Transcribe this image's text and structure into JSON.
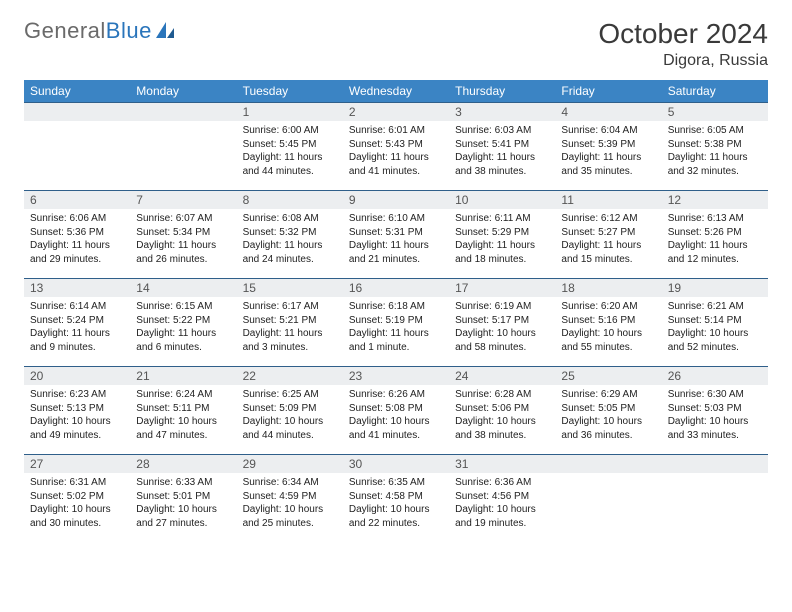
{
  "brand": {
    "part1": "General",
    "part2": "Blue"
  },
  "title": "October 2024",
  "location": "Digora, Russia",
  "colors": {
    "header_bg": "#3b84c4",
    "header_text": "#ffffff",
    "daynum_bg": "#eceef0",
    "border": "#2f5f8a",
    "body_text": "#222222",
    "title_text": "#3a3a3a",
    "logo_gray": "#6a6a6a",
    "logo_blue": "#2a75bb"
  },
  "weekdays": [
    "Sunday",
    "Monday",
    "Tuesday",
    "Wednesday",
    "Thursday",
    "Friday",
    "Saturday"
  ],
  "weeks": [
    [
      {
        "n": "",
        "sr": "",
        "ss": "",
        "dl": ""
      },
      {
        "n": "",
        "sr": "",
        "ss": "",
        "dl": ""
      },
      {
        "n": "1",
        "sr": "Sunrise: 6:00 AM",
        "ss": "Sunset: 5:45 PM",
        "dl": "Daylight: 11 hours and 44 minutes."
      },
      {
        "n": "2",
        "sr": "Sunrise: 6:01 AM",
        "ss": "Sunset: 5:43 PM",
        "dl": "Daylight: 11 hours and 41 minutes."
      },
      {
        "n": "3",
        "sr": "Sunrise: 6:03 AM",
        "ss": "Sunset: 5:41 PM",
        "dl": "Daylight: 11 hours and 38 minutes."
      },
      {
        "n": "4",
        "sr": "Sunrise: 6:04 AM",
        "ss": "Sunset: 5:39 PM",
        "dl": "Daylight: 11 hours and 35 minutes."
      },
      {
        "n": "5",
        "sr": "Sunrise: 6:05 AM",
        "ss": "Sunset: 5:38 PM",
        "dl": "Daylight: 11 hours and 32 minutes."
      }
    ],
    [
      {
        "n": "6",
        "sr": "Sunrise: 6:06 AM",
        "ss": "Sunset: 5:36 PM",
        "dl": "Daylight: 11 hours and 29 minutes."
      },
      {
        "n": "7",
        "sr": "Sunrise: 6:07 AM",
        "ss": "Sunset: 5:34 PM",
        "dl": "Daylight: 11 hours and 26 minutes."
      },
      {
        "n": "8",
        "sr": "Sunrise: 6:08 AM",
        "ss": "Sunset: 5:32 PM",
        "dl": "Daylight: 11 hours and 24 minutes."
      },
      {
        "n": "9",
        "sr": "Sunrise: 6:10 AM",
        "ss": "Sunset: 5:31 PM",
        "dl": "Daylight: 11 hours and 21 minutes."
      },
      {
        "n": "10",
        "sr": "Sunrise: 6:11 AM",
        "ss": "Sunset: 5:29 PM",
        "dl": "Daylight: 11 hours and 18 minutes."
      },
      {
        "n": "11",
        "sr": "Sunrise: 6:12 AM",
        "ss": "Sunset: 5:27 PM",
        "dl": "Daylight: 11 hours and 15 minutes."
      },
      {
        "n": "12",
        "sr": "Sunrise: 6:13 AM",
        "ss": "Sunset: 5:26 PM",
        "dl": "Daylight: 11 hours and 12 minutes."
      }
    ],
    [
      {
        "n": "13",
        "sr": "Sunrise: 6:14 AM",
        "ss": "Sunset: 5:24 PM",
        "dl": "Daylight: 11 hours and 9 minutes."
      },
      {
        "n": "14",
        "sr": "Sunrise: 6:15 AM",
        "ss": "Sunset: 5:22 PM",
        "dl": "Daylight: 11 hours and 6 minutes."
      },
      {
        "n": "15",
        "sr": "Sunrise: 6:17 AM",
        "ss": "Sunset: 5:21 PM",
        "dl": "Daylight: 11 hours and 3 minutes."
      },
      {
        "n": "16",
        "sr": "Sunrise: 6:18 AM",
        "ss": "Sunset: 5:19 PM",
        "dl": "Daylight: 11 hours and 1 minute."
      },
      {
        "n": "17",
        "sr": "Sunrise: 6:19 AM",
        "ss": "Sunset: 5:17 PM",
        "dl": "Daylight: 10 hours and 58 minutes."
      },
      {
        "n": "18",
        "sr": "Sunrise: 6:20 AM",
        "ss": "Sunset: 5:16 PM",
        "dl": "Daylight: 10 hours and 55 minutes."
      },
      {
        "n": "19",
        "sr": "Sunrise: 6:21 AM",
        "ss": "Sunset: 5:14 PM",
        "dl": "Daylight: 10 hours and 52 minutes."
      }
    ],
    [
      {
        "n": "20",
        "sr": "Sunrise: 6:23 AM",
        "ss": "Sunset: 5:13 PM",
        "dl": "Daylight: 10 hours and 49 minutes."
      },
      {
        "n": "21",
        "sr": "Sunrise: 6:24 AM",
        "ss": "Sunset: 5:11 PM",
        "dl": "Daylight: 10 hours and 47 minutes."
      },
      {
        "n": "22",
        "sr": "Sunrise: 6:25 AM",
        "ss": "Sunset: 5:09 PM",
        "dl": "Daylight: 10 hours and 44 minutes."
      },
      {
        "n": "23",
        "sr": "Sunrise: 6:26 AM",
        "ss": "Sunset: 5:08 PM",
        "dl": "Daylight: 10 hours and 41 minutes."
      },
      {
        "n": "24",
        "sr": "Sunrise: 6:28 AM",
        "ss": "Sunset: 5:06 PM",
        "dl": "Daylight: 10 hours and 38 minutes."
      },
      {
        "n": "25",
        "sr": "Sunrise: 6:29 AM",
        "ss": "Sunset: 5:05 PM",
        "dl": "Daylight: 10 hours and 36 minutes."
      },
      {
        "n": "26",
        "sr": "Sunrise: 6:30 AM",
        "ss": "Sunset: 5:03 PM",
        "dl": "Daylight: 10 hours and 33 minutes."
      }
    ],
    [
      {
        "n": "27",
        "sr": "Sunrise: 6:31 AM",
        "ss": "Sunset: 5:02 PM",
        "dl": "Daylight: 10 hours and 30 minutes."
      },
      {
        "n": "28",
        "sr": "Sunrise: 6:33 AM",
        "ss": "Sunset: 5:01 PM",
        "dl": "Daylight: 10 hours and 27 minutes."
      },
      {
        "n": "29",
        "sr": "Sunrise: 6:34 AM",
        "ss": "Sunset: 4:59 PM",
        "dl": "Daylight: 10 hours and 25 minutes."
      },
      {
        "n": "30",
        "sr": "Sunrise: 6:35 AM",
        "ss": "Sunset: 4:58 PM",
        "dl": "Daylight: 10 hours and 22 minutes."
      },
      {
        "n": "31",
        "sr": "Sunrise: 6:36 AM",
        "ss": "Sunset: 4:56 PM",
        "dl": "Daylight: 10 hours and 19 minutes."
      },
      {
        "n": "",
        "sr": "",
        "ss": "",
        "dl": ""
      },
      {
        "n": "",
        "sr": "",
        "ss": "",
        "dl": ""
      }
    ]
  ]
}
